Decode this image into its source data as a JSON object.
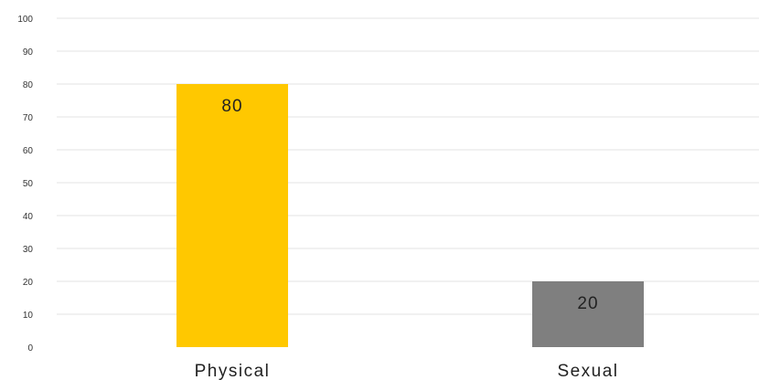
{
  "chart_data": {
    "type": "bar",
    "title": "",
    "xlabel": "",
    "ylabel": "",
    "categories": [
      "Physical",
      "Sexual"
    ],
    "values": [
      80,
      20
    ],
    "data_labels": [
      "80",
      "20"
    ],
    "colors": [
      "#FFC800",
      "#7F7F7F"
    ],
    "ylim": [
      0,
      100
    ],
    "yticks": [
      0,
      10,
      20,
      30,
      40,
      50,
      60,
      70,
      80,
      90,
      100
    ],
    "grid": true,
    "legend": "none"
  }
}
